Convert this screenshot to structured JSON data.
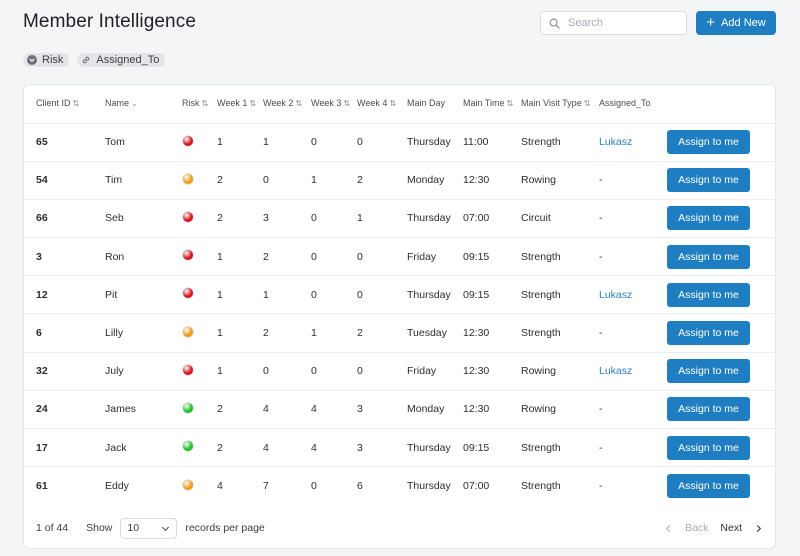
{
  "header": {
    "title": "Member Intelligence",
    "search_placeholder": "Search",
    "add_label": "Add New"
  },
  "chips": [
    {
      "label": "Risk",
      "icon": "chevron-down-circle-icon"
    },
    {
      "label": "Assigned_To",
      "icon": "link-icon"
    }
  ],
  "table": {
    "columns": [
      {
        "key": "client_id",
        "label": "Client ID",
        "sort": "both"
      },
      {
        "key": "name",
        "label": "Name",
        "sort": "desc"
      },
      {
        "key": "risk",
        "label": "Risk",
        "sort": "both"
      },
      {
        "key": "week1",
        "label": "Week 1",
        "sort": "both"
      },
      {
        "key": "week2",
        "label": "Week 2",
        "sort": "both"
      },
      {
        "key": "week3",
        "label": "Week 3",
        "sort": "both"
      },
      {
        "key": "week4",
        "label": "Week 4",
        "sort": "both"
      },
      {
        "key": "main_day",
        "label": "Main Day",
        "sort": "none"
      },
      {
        "key": "main_time",
        "label": "Main Time",
        "sort": "both"
      },
      {
        "key": "visit_type",
        "label": "Main Visit Type",
        "sort": "both"
      },
      {
        "key": "assigned_to",
        "label": "Assigned_To",
        "sort": "none"
      }
    ],
    "risk_colors": {
      "high": "#d8141c",
      "medium": "#f29a17",
      "low": "#22c12a"
    },
    "assign_button_label": "Assign to me",
    "rows": [
      {
        "client_id": "65",
        "name": "Tom",
        "risk": "high",
        "week1": "1",
        "week2": "1",
        "week3": "0",
        "week4": "0",
        "main_day": "Thursday",
        "main_time": "11:00",
        "visit_type": "Strength",
        "assigned_to": "Lukasz"
      },
      {
        "client_id": "54",
        "name": "Tim",
        "risk": "medium",
        "week1": "2",
        "week2": "0",
        "week3": "1",
        "week4": "2",
        "main_day": "Monday",
        "main_time": "12:30",
        "visit_type": "Rowing",
        "assigned_to": "-"
      },
      {
        "client_id": "66",
        "name": "Seb",
        "risk": "high",
        "week1": "2",
        "week2": "3",
        "week3": "0",
        "week4": "1",
        "main_day": "Thursday",
        "main_time": "07:00",
        "visit_type": "Circuit",
        "assigned_to": "-"
      },
      {
        "client_id": "3",
        "name": "Ron",
        "risk": "high",
        "week1": "1",
        "week2": "2",
        "week3": "0",
        "week4": "0",
        "main_day": "Friday",
        "main_time": "09:15",
        "visit_type": "Strength",
        "assigned_to": "-"
      },
      {
        "client_id": "12",
        "name": "Pit",
        "risk": "high",
        "week1": "1",
        "week2": "1",
        "week3": "0",
        "week4": "0",
        "main_day": "Thursday",
        "main_time": "09:15",
        "visit_type": "Strength",
        "assigned_to": "Lukasz"
      },
      {
        "client_id": "6",
        "name": "Lilly",
        "risk": "medium",
        "week1": "1",
        "week2": "2",
        "week3": "1",
        "week4": "2",
        "main_day": "Tuesday",
        "main_time": "12:30",
        "visit_type": "Strength",
        "assigned_to": "-"
      },
      {
        "client_id": "32",
        "name": "July",
        "risk": "high",
        "week1": "1",
        "week2": "0",
        "week3": "0",
        "week4": "0",
        "main_day": "Friday",
        "main_time": "12:30",
        "visit_type": "Rowing",
        "assigned_to": "Lukasz"
      },
      {
        "client_id": "24",
        "name": "James",
        "risk": "low",
        "week1": "2",
        "week2": "4",
        "week3": "4",
        "week4": "3",
        "main_day": "Monday",
        "main_time": "12:30",
        "visit_type": "Rowing",
        "assigned_to": "-"
      },
      {
        "client_id": "17",
        "name": "Jack",
        "risk": "low",
        "week1": "2",
        "week2": "4",
        "week3": "4",
        "week4": "3",
        "main_day": "Thursday",
        "main_time": "09:15",
        "visit_type": "Strength",
        "assigned_to": "-"
      },
      {
        "client_id": "61",
        "name": "Eddy",
        "risk": "medium",
        "week1": "4",
        "week2": "7",
        "week3": "0",
        "week4": "6",
        "main_day": "Thursday",
        "main_time": "07:00",
        "visit_type": "Strength",
        "assigned_to": "-"
      }
    ]
  },
  "footer": {
    "page_count": "1 of 44",
    "show_label": "Show",
    "page_size": "10",
    "records_label": "records per page",
    "back_label": "Back",
    "next_label": "Next"
  }
}
